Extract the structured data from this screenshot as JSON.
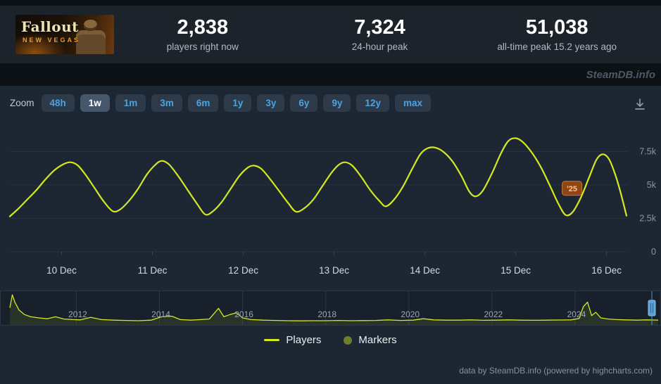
{
  "header": {
    "game": {
      "logo_line1": "Fallout",
      "logo_line2": "NEW VEGAS"
    },
    "stats": [
      {
        "value": "2,838",
        "label": "players right now"
      },
      {
        "value": "7,324",
        "label": "24-hour peak"
      },
      {
        "value": "51,038",
        "label": "all-time peak 15.2 years ago"
      }
    ]
  },
  "watermark": "SteamDB.info",
  "toolbar": {
    "zoom_label": "Zoom",
    "buttons": [
      "48h",
      "1w",
      "1m",
      "3m",
      "6m",
      "1y",
      "3y",
      "6y",
      "9y",
      "12y",
      "max"
    ],
    "selected": "1w",
    "download_icon": "download-icon"
  },
  "chart_data": [
    {
      "id": "players-week",
      "type": "line",
      "ylabel": "Players",
      "xlim": [
        9.43,
        16.22
      ],
      "ylim": [
        0,
        9200
      ],
      "grid": "horizontal",
      "legend_position": "bottom",
      "x_ticks": [
        {
          "pos": 10,
          "label": "10 Dec"
        },
        {
          "pos": 11,
          "label": "11 Dec"
        },
        {
          "pos": 12,
          "label": "12 Dec"
        },
        {
          "pos": 13,
          "label": "13 Dec"
        },
        {
          "pos": 14,
          "label": "14 Dec"
        },
        {
          "pos": 15,
          "label": "15 Dec"
        },
        {
          "pos": 16,
          "label": "16 Dec"
        }
      ],
      "y_ticks": [
        {
          "pos": 0,
          "label": "0"
        },
        {
          "pos": 2500,
          "label": "2.5k"
        },
        {
          "pos": 5000,
          "label": "5k"
        },
        {
          "pos": 7500,
          "label": "7.5k"
        }
      ],
      "series": [
        {
          "name": "Players",
          "color": "#d2e823",
          "points": [
            [
              9.43,
              2650
            ],
            [
              9.52,
              3200
            ],
            [
              9.62,
              3900
            ],
            [
              9.72,
              4600
            ],
            [
              9.82,
              5400
            ],
            [
              9.92,
              6100
            ],
            [
              10.02,
              6550
            ],
            [
              10.1,
              6700
            ],
            [
              10.18,
              6450
            ],
            [
              10.27,
              5700
            ],
            [
              10.36,
              4800
            ],
            [
              10.46,
              3800
            ],
            [
              10.56,
              3050
            ],
            [
              10.64,
              3150
            ],
            [
              10.74,
              3800
            ],
            [
              10.84,
              4700
            ],
            [
              10.94,
              5800
            ],
            [
              11.03,
              6500
            ],
            [
              11.1,
              6800
            ],
            [
              11.18,
              6550
            ],
            [
              11.28,
              5700
            ],
            [
              11.38,
              4700
            ],
            [
              11.49,
              3600
            ],
            [
              11.58,
              2800
            ],
            [
              11.66,
              3000
            ],
            [
              11.76,
              3700
            ],
            [
              11.86,
              4700
            ],
            [
              11.96,
              5700
            ],
            [
              12.05,
              6300
            ],
            [
              12.12,
              6450
            ],
            [
              12.2,
              6200
            ],
            [
              12.3,
              5400
            ],
            [
              12.4,
              4500
            ],
            [
              12.5,
              3600
            ],
            [
              12.58,
              3000
            ],
            [
              12.67,
              3250
            ],
            [
              12.77,
              3900
            ],
            [
              12.87,
              4900
            ],
            [
              12.97,
              5900
            ],
            [
              13.05,
              6500
            ],
            [
              13.12,
              6700
            ],
            [
              13.2,
              6450
            ],
            [
              13.3,
              5600
            ],
            [
              13.4,
              4600
            ],
            [
              13.5,
              3800
            ],
            [
              13.57,
              3400
            ],
            [
              13.66,
              3900
            ],
            [
              13.76,
              4900
            ],
            [
              13.86,
              6200
            ],
            [
              13.95,
              7300
            ],
            [
              14.03,
              7750
            ],
            [
              14.11,
              7800
            ],
            [
              14.2,
              7500
            ],
            [
              14.3,
              6800
            ],
            [
              14.4,
              5700
            ],
            [
              14.49,
              4500
            ],
            [
              14.56,
              4150
            ],
            [
              14.64,
              4600
            ],
            [
              14.74,
              5900
            ],
            [
              14.84,
              7400
            ],
            [
              14.92,
              8300
            ],
            [
              15.0,
              8500
            ],
            [
              15.08,
              8200
            ],
            [
              15.18,
              7400
            ],
            [
              15.28,
              6300
            ],
            [
              15.38,
              4900
            ],
            [
              15.47,
              3600
            ],
            [
              15.55,
              2750
            ],
            [
              15.63,
              3000
            ],
            [
              15.72,
              4100
            ],
            [
              15.81,
              5600
            ],
            [
              15.89,
              6900
            ],
            [
              15.96,
              7300
            ],
            [
              16.03,
              6900
            ],
            [
              16.1,
              5700
            ],
            [
              16.16,
              4300
            ],
            [
              16.22,
              2700
            ]
          ]
        }
      ],
      "marker": {
        "label": "'25",
        "x": 15.62,
        "y": 4750,
        "fill": "#8f4612",
        "border": "#c97a38",
        "text_color": "#f6c79a"
      }
    },
    {
      "id": "history-navigator",
      "type": "area",
      "x_unit": "year",
      "y_unit": "players (thousands, approx)",
      "xlim": [
        2010.4,
        2026.0
      ],
      "ylim": [
        0,
        55
      ],
      "x_ticks": [
        {
          "pos": 2012,
          "label": "2012"
        },
        {
          "pos": 2014,
          "label": "2014"
        },
        {
          "pos": 2016,
          "label": "2016"
        },
        {
          "pos": 2018,
          "label": "2018"
        },
        {
          "pos": 2020,
          "label": "2020"
        },
        {
          "pos": 2022,
          "label": "2022"
        },
        {
          "pos": 2024,
          "label": "2024"
        }
      ],
      "series": [
        {
          "name": "Players (full history)",
          "color": "#d2e823",
          "fill": "rgba(210,232,35,0.09)",
          "points": [
            [
              2010.4,
              28
            ],
            [
              2010.46,
              51
            ],
            [
              2010.52,
              38
            ],
            [
              2010.62,
              24
            ],
            [
              2010.75,
              16
            ],
            [
              2010.9,
              12
            ],
            [
              2011.1,
              10
            ],
            [
              2011.3,
              8.5
            ],
            [
              2011.5,
              12
            ],
            [
              2011.7,
              8
            ],
            [
              2011.9,
              7
            ],
            [
              2012.1,
              6.5
            ],
            [
              2012.35,
              11
            ],
            [
              2012.6,
              7
            ],
            [
              2012.9,
              6
            ],
            [
              2013.2,
              5.5
            ],
            [
              2013.5,
              5
            ],
            [
              2013.8,
              6
            ],
            [
              2014.05,
              12
            ],
            [
              2014.3,
              13
            ],
            [
              2014.5,
              7
            ],
            [
              2014.75,
              6
            ],
            [
              2015.0,
              7
            ],
            [
              2015.2,
              8
            ],
            [
              2015.42,
              27
            ],
            [
              2015.55,
              12
            ],
            [
              2015.7,
              16
            ],
            [
              2015.85,
              19
            ],
            [
              2016.0,
              10
            ],
            [
              2016.2,
              7
            ],
            [
              2016.5,
              6
            ],
            [
              2016.8,
              5.5
            ],
            [
              2017.1,
              5
            ],
            [
              2017.4,
              4.8
            ],
            [
              2017.7,
              5
            ],
            [
              2018.0,
              5
            ],
            [
              2018.3,
              5.5
            ],
            [
              2018.6,
              5
            ],
            [
              2018.9,
              5.2
            ],
            [
              2019.2,
              5.5
            ],
            [
              2019.5,
              6.5
            ],
            [
              2019.8,
              5.5
            ],
            [
              2020.1,
              6
            ],
            [
              2020.35,
              8.5
            ],
            [
              2020.6,
              6.5
            ],
            [
              2020.9,
              6
            ],
            [
              2021.2,
              6
            ],
            [
              2021.5,
              6.5
            ],
            [
              2021.8,
              5.8
            ],
            [
              2022.1,
              6
            ],
            [
              2022.4,
              6.5
            ],
            [
              2022.7,
              6
            ],
            [
              2023.0,
              5.8
            ],
            [
              2023.3,
              6
            ],
            [
              2023.6,
              6.2
            ],
            [
              2023.9,
              6.5
            ],
            [
              2024.1,
              9
            ],
            [
              2024.2,
              30
            ],
            [
              2024.3,
              38
            ],
            [
              2024.4,
              14
            ],
            [
              2024.5,
              20
            ],
            [
              2024.62,
              10
            ],
            [
              2024.8,
              8
            ],
            [
              2025.0,
              7
            ],
            [
              2025.2,
              6.5
            ],
            [
              2025.5,
              6
            ],
            [
              2025.7,
              6.5
            ],
            [
              2025.9,
              6.2
            ],
            [
              2026.0,
              6
            ]
          ]
        }
      ]
    }
  ],
  "legend": [
    {
      "label": "Players",
      "swatch": "line",
      "color": "#d2e823"
    },
    {
      "label": "Markers",
      "swatch": "circle",
      "color": "#6f7d2e"
    }
  ],
  "credits": "data by SteamDB.info (powered by highcharts.com)",
  "colors": {
    "page_bg": "#0c1116",
    "header_bg": "#1d232b",
    "panel_bg": "#1c2733",
    "line": "#d2e823",
    "accent_blue": "#4da3e0",
    "navigator_handle": "#5ba0d6",
    "marker_badge": "#8f4612"
  }
}
